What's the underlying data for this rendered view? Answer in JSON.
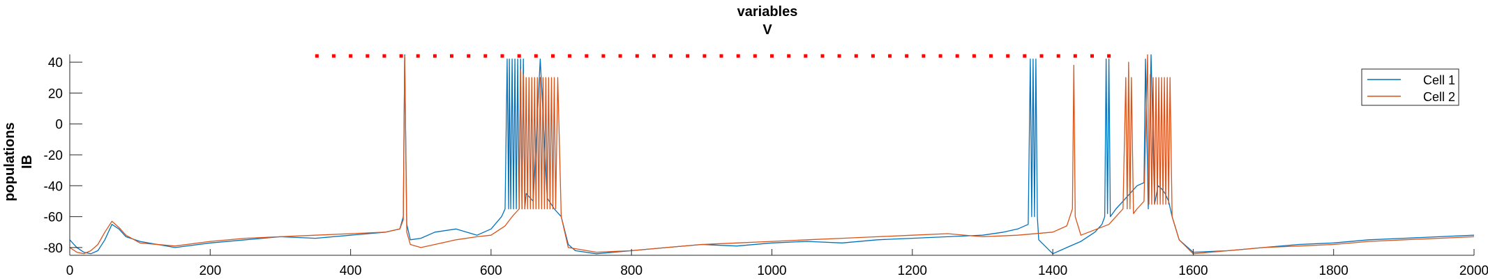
{
  "chart_data": {
    "type": "line",
    "title": "variables",
    "subtitle": "V",
    "ylabel_line1": "populations",
    "ylabel_line2": "IB",
    "xlabel": "",
    "xlim": [
      0,
      2000
    ],
    "ylim": [
      -85,
      45
    ],
    "x_ticks": [
      0,
      200,
      400,
      600,
      800,
      1000,
      1200,
      1400,
      1600,
      1800,
      2000
    ],
    "y_ticks": [
      -80,
      -60,
      -40,
      -20,
      0,
      20,
      40
    ],
    "grid": false,
    "legend_position": "top-right",
    "colors": {
      "cell1": "#0072BD",
      "cell2": "#D95319",
      "marker": "#FF0000"
    },
    "series": [
      {
        "name": "Cell 1",
        "x": [
          0,
          10,
          20,
          30,
          40,
          50,
          60,
          70,
          80,
          100,
          150,
          200,
          250,
          300,
          350,
          400,
          450,
          470,
          475,
          477,
          480,
          485,
          500,
          520,
          550,
          580,
          600,
          615,
          620,
          623,
          625,
          626,
          628,
          630,
          632,
          634,
          636,
          638,
          640,
          642,
          644,
          646,
          648,
          650,
          660,
          670,
          680,
          690,
          700,
          710,
          720,
          750,
          800,
          850,
          900,
          950,
          1000,
          1050,
          1100,
          1150,
          1200,
          1250,
          1300,
          1330,
          1350,
          1365,
          1368,
          1370,
          1372,
          1374,
          1376,
          1378,
          1380,
          1400,
          1420,
          1440,
          1460,
          1470,
          1474,
          1476,
          1478,
          1480,
          1482,
          1490,
          1500,
          1520,
          1530,
          1532,
          1536,
          1540,
          1545,
          1550,
          1555,
          1560,
          1565,
          1570,
          1580,
          1600,
          1650,
          1700,
          1750,
          1800,
          1850,
          1900,
          1950,
          2000
        ],
        "y": [
          -75,
          -80,
          -83,
          -84,
          -82,
          -75,
          -65,
          -68,
          -73,
          -76,
          -80,
          -77,
          -75,
          -73,
          -74,
          -72,
          -70,
          -68,
          -60,
          45,
          -65,
          -75,
          -74,
          -70,
          -68,
          -72,
          -68,
          -60,
          -55,
          42,
          -55,
          42,
          -55,
          42,
          -55,
          42,
          -55,
          42,
          -55,
          42,
          -55,
          42,
          -55,
          -45,
          -50,
          42,
          -48,
          -55,
          -60,
          -78,
          -82,
          -84,
          -82,
          -80,
          -78,
          -79,
          -77,
          -76,
          -77,
          -75,
          -74,
          -73,
          -72,
          -70,
          -68,
          -65,
          42,
          -60,
          42,
          -60,
          42,
          -60,
          -75,
          -84,
          -80,
          -76,
          -70,
          -65,
          -60,
          42,
          -58,
          42,
          -60,
          -55,
          -50,
          -40,
          -38,
          42,
          -55,
          45,
          -52,
          -40,
          -42,
          -45,
          -50,
          -60,
          -75,
          -83,
          -82,
          -80,
          -78,
          -77,
          -75,
          -74,
          -73,
          -72
        ]
      },
      {
        "name": "Cell 2",
        "x": [
          0,
          10,
          20,
          30,
          40,
          50,
          60,
          70,
          80,
          100,
          150,
          200,
          250,
          300,
          350,
          400,
          450,
          470,
          475,
          477,
          480,
          485,
          500,
          520,
          550,
          580,
          600,
          620,
          630,
          640,
          642,
          644,
          646,
          648,
          650,
          652,
          654,
          656,
          658,
          660,
          662,
          664,
          666,
          668,
          670,
          672,
          674,
          676,
          678,
          680,
          682,
          684,
          686,
          688,
          690,
          692,
          695,
          700,
          710,
          750,
          800,
          850,
          900,
          950,
          1000,
          1050,
          1100,
          1150,
          1200,
          1250,
          1300,
          1350,
          1400,
          1420,
          1428,
          1430,
          1432,
          1440,
          1480,
          1490,
          1500,
          1504,
          1506,
          1508,
          1510,
          1512,
          1515,
          1520,
          1530,
          1535,
          1537,
          1539,
          1541,
          1543,
          1545,
          1547,
          1549,
          1551,
          1553,
          1555,
          1557,
          1559,
          1561,
          1563,
          1565,
          1567,
          1570,
          1580,
          1600,
          1650,
          1700,
          1750,
          1800,
          1850,
          1900,
          1950,
          2000
        ],
        "y": [
          -80,
          -83,
          -84,
          -82,
          -78,
          -70,
          -63,
          -67,
          -72,
          -77,
          -79,
          -76,
          -74,
          -73,
          -72,
          -71,
          -70,
          -68,
          -62,
          44,
          -70,
          -78,
          -80,
          -78,
          -75,
          -73,
          -72,
          -66,
          -60,
          -55,
          35,
          -55,
          32,
          -55,
          30,
          -55,
          30,
          -55,
          30,
          -55,
          30,
          -55,
          30,
          -55,
          30,
          -55,
          30,
          -55,
          30,
          -55,
          30,
          -55,
          30,
          -55,
          30,
          -55,
          30,
          -60,
          -80,
          -83,
          -82,
          -80,
          -78,
          -77,
          -76,
          -75,
          -74,
          -73,
          -72,
          -71,
          -73,
          -72,
          -70,
          -66,
          -55,
          38,
          -60,
          -72,
          -65,
          -60,
          -55,
          30,
          -55,
          40,
          -55,
          30,
          -58,
          -55,
          -50,
          45,
          -52,
          32,
          -52,
          30,
          -52,
          30,
          -52,
          30,
          -52,
          30,
          -52,
          30,
          -52,
          30,
          -52,
          30,
          -60,
          -75,
          -84,
          -82,
          -80,
          -79,
          -78,
          -76,
          -75,
          -74,
          -73
        ]
      }
    ],
    "markers": {
      "color": "#FF0000",
      "y": 44,
      "x": [
        352,
        376,
        400,
        424,
        448,
        472,
        496,
        520,
        544,
        568,
        592,
        616,
        640,
        664,
        688,
        712,
        736,
        760,
        784,
        808,
        832,
        856,
        880,
        904,
        928,
        952,
        976,
        1000,
        1024,
        1048,
        1072,
        1096,
        1120,
        1144,
        1168,
        1192,
        1216,
        1240,
        1264,
        1288,
        1312,
        1336,
        1360,
        1384,
        1408,
        1432,
        1456,
        1480
      ]
    }
  }
}
